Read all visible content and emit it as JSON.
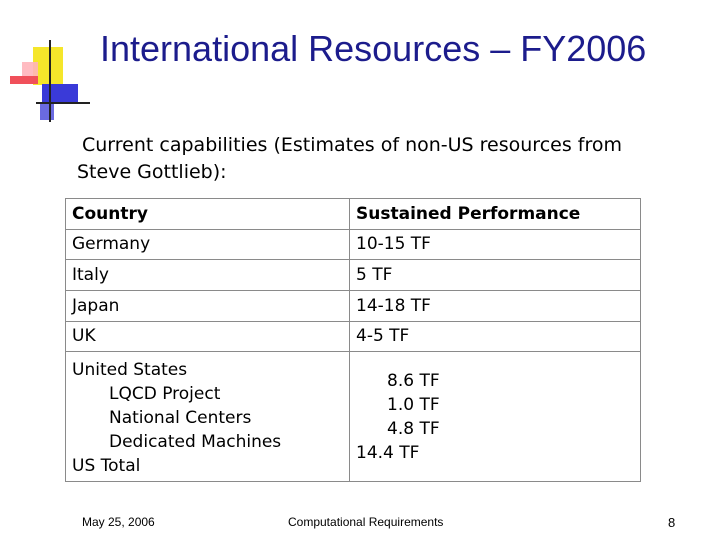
{
  "slide": {
    "title": "International Resources – FY2006",
    "intro_line1": "Current capabilities (Estimates of non-US resources from",
    "intro_line2": "Steve Gottlieb):"
  },
  "table": {
    "header": [
      "Country",
      "Sustained Performance"
    ],
    "rows": [
      [
        "Germany",
        "10-15 TF"
      ],
      [
        "Italy",
        "5 TF"
      ],
      [
        "Japan",
        "14-18 TF"
      ],
      [
        "UK",
        "4-5 TF"
      ]
    ],
    "us": {
      "country_lines": [
        "United States",
        "LQCD Project",
        "National Centers",
        "Dedicated Machines",
        "US Total"
      ],
      "perf_lines": [
        "8.6 TF",
        "1.0 TF",
        "4.8 TF",
        "14.4 TF"
      ]
    }
  },
  "footer": {
    "date": "May 25, 2006",
    "center": "Computational Requirements",
    "page": "8"
  },
  "colors": {
    "title": "#1c1c8c",
    "logo_yellow": "#f5e62a",
    "logo_red": "#f0505a",
    "logo_blue": "#3a3ad8"
  }
}
